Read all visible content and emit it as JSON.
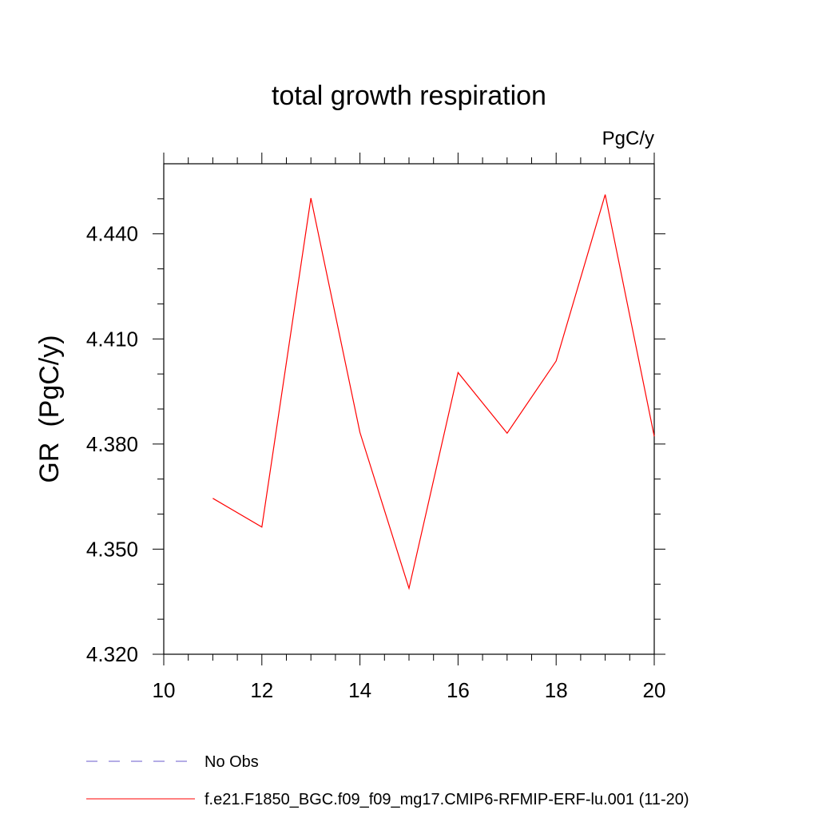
{
  "chart_data": {
    "type": "line",
    "title": "total growth respiration",
    "units_label": "PgC/y",
    "xlabel": "",
    "ylabel": "GR  (PgC/y)",
    "xlim": [
      10,
      20
    ],
    "ylim": [
      4.32,
      4.46
    ],
    "x_ticks": [
      10,
      12,
      14,
      16,
      18,
      20
    ],
    "x_tick_labels": [
      "10",
      "12",
      "14",
      "16",
      "18",
      "20"
    ],
    "y_ticks": [
      4.32,
      4.35,
      4.38,
      4.41,
      4.44
    ],
    "y_tick_labels": [
      "4.320",
      "4.350",
      "4.380",
      "4.410",
      "4.440"
    ],
    "series": [
      {
        "name": "f.e21.F1850_BGC.f09_f09_mg17.CMIP6-RFMIP-ERF-lu.001 (11-20)",
        "color": "#ff0000",
        "x": [
          11,
          12,
          13,
          14,
          15,
          16,
          17,
          18,
          19,
          20
        ],
        "values": [
          4.3645,
          4.3563,
          4.4502,
          4.3833,
          4.3388,
          4.4004,
          4.3831,
          4.4037,
          4.4512,
          4.3822
        ]
      }
    ],
    "legend": [
      {
        "label": "No Obs",
        "color": "#6a5acd",
        "style": "dashed"
      },
      {
        "label": "f.e21.F1850_BGC.f09_f09_mg17.CMIP6-RFMIP-ERF-lu.001 (11-20)",
        "color": "#ff0000",
        "style": "solid"
      }
    ]
  }
}
